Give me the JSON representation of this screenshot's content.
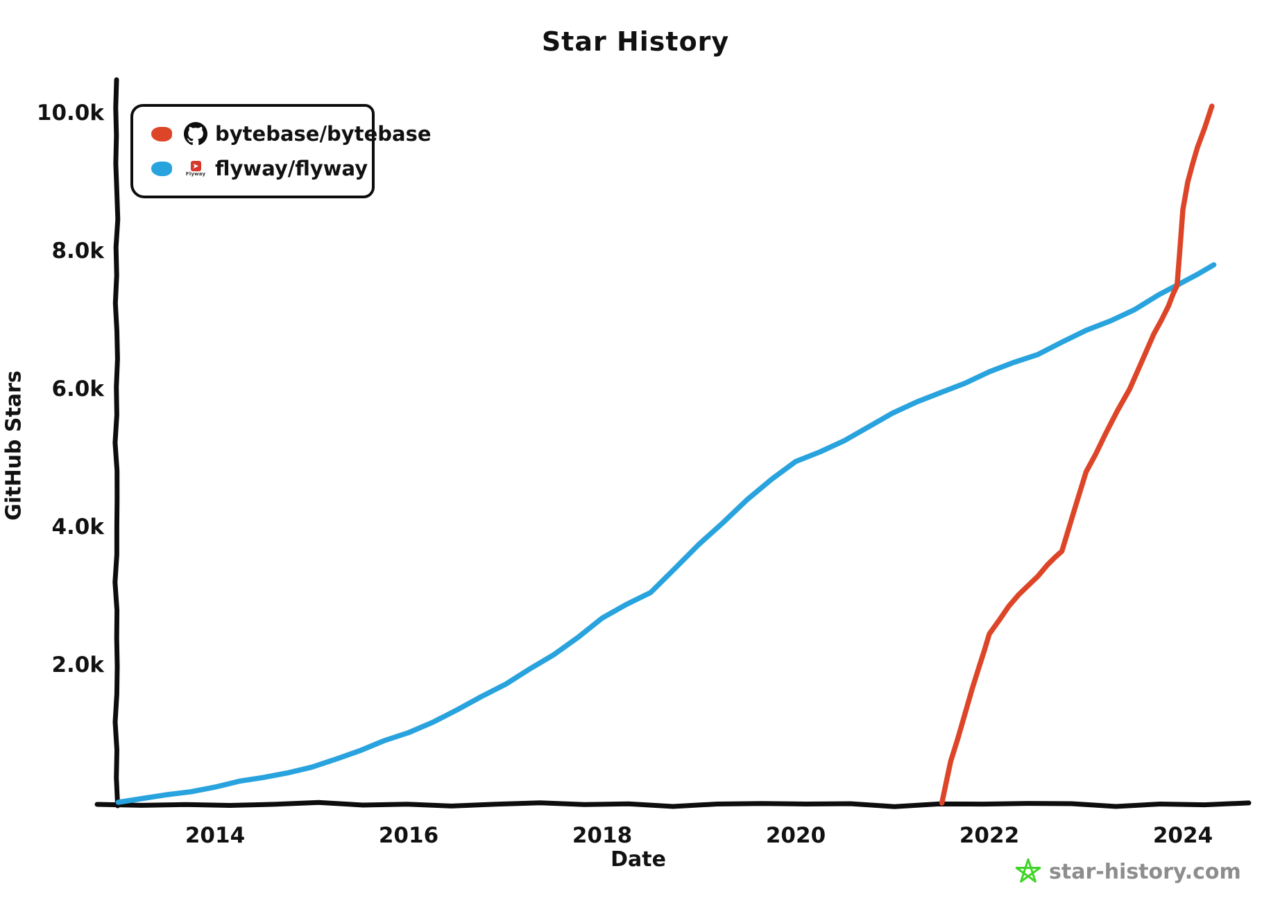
{
  "title": "Star History",
  "watermark": {
    "text": "star-history.com",
    "star_color": "#3fd527",
    "text_color": "#8d8d8d"
  },
  "legend": {
    "position": "top-left",
    "items": [
      {
        "repo": "bytebase/bytebase",
        "color": "#dd4528",
        "icon": "github-icon"
      },
      {
        "repo": "flyway/flyway",
        "color": "#28a3dd",
        "icon": "flyway-icon"
      }
    ]
  },
  "colors": {
    "bytebase_line": "#dd4528",
    "flyway_line": "#28a3dd",
    "axis": "#0d0d0d",
    "text": "#111111"
  },
  "chart_data": {
    "type": "line",
    "title": "Star History",
    "xlabel": "Date",
    "ylabel": "GitHub Stars",
    "grid": false,
    "legend_position": "top-left",
    "xlim": [
      2013.0,
      2024.65
    ],
    "ylim": [
      0,
      10400
    ],
    "x_ticks": [
      {
        "value": 2014,
        "label": "2014"
      },
      {
        "value": 2016,
        "label": "2016"
      },
      {
        "value": 2018,
        "label": "2018"
      },
      {
        "value": 2020,
        "label": "2020"
      },
      {
        "value": 2022,
        "label": "2022"
      },
      {
        "value": 2024,
        "label": "2024"
      }
    ],
    "y_ticks": [
      {
        "value": 2000,
        "label": "2.0k"
      },
      {
        "value": 4000,
        "label": "4.0k"
      },
      {
        "value": 6000,
        "label": "6.0k"
      },
      {
        "value": 8000,
        "label": "8.0k"
      },
      {
        "value": 10000,
        "label": "10.0k"
      }
    ],
    "series": [
      {
        "name": "flyway/flyway",
        "color": "#28a3dd",
        "points": [
          [
            2013.0,
            10
          ],
          [
            2013.5,
            120
          ],
          [
            2014.0,
            230
          ],
          [
            2014.5,
            370
          ],
          [
            2015.0,
            520
          ],
          [
            2015.5,
            760
          ],
          [
            2016.0,
            1020
          ],
          [
            2016.5,
            1350
          ],
          [
            2017.0,
            1720
          ],
          [
            2017.5,
            2150
          ],
          [
            2018.0,
            2680
          ],
          [
            2018.5,
            3050
          ],
          [
            2019.0,
            3750
          ],
          [
            2019.5,
            4400
          ],
          [
            2020.0,
            4950
          ],
          [
            2020.5,
            5250
          ],
          [
            2021.0,
            5650
          ],
          [
            2021.5,
            5950
          ],
          [
            2022.0,
            6250
          ],
          [
            2022.5,
            6500
          ],
          [
            2023.0,
            6850
          ],
          [
            2023.5,
            7150
          ],
          [
            2024.0,
            7550
          ],
          [
            2024.32,
            7800
          ]
        ]
      },
      {
        "name": "bytebase/bytebase",
        "color": "#dd4528",
        "points": [
          [
            2021.51,
            0
          ],
          [
            2021.6,
            600
          ],
          [
            2021.75,
            1300
          ],
          [
            2021.9,
            2000
          ],
          [
            2022.0,
            2450
          ],
          [
            2022.2,
            2850
          ],
          [
            2022.4,
            3150
          ],
          [
            2022.6,
            3450
          ],
          [
            2022.75,
            3650
          ],
          [
            2023.0,
            4800
          ],
          [
            2023.2,
            5350
          ],
          [
            2023.45,
            6000
          ],
          [
            2023.7,
            6800
          ],
          [
            2023.85,
            7200
          ],
          [
            2023.94,
            7500
          ],
          [
            2024.0,
            8600
          ],
          [
            2024.05,
            9000
          ],
          [
            2024.15,
            9500
          ],
          [
            2024.3,
            10100
          ]
        ]
      }
    ],
    "annotations": {
      "crossover": {
        "x": 2023.94,
        "y": 7500,
        "note": "red line overtakes blue line"
      }
    }
  }
}
